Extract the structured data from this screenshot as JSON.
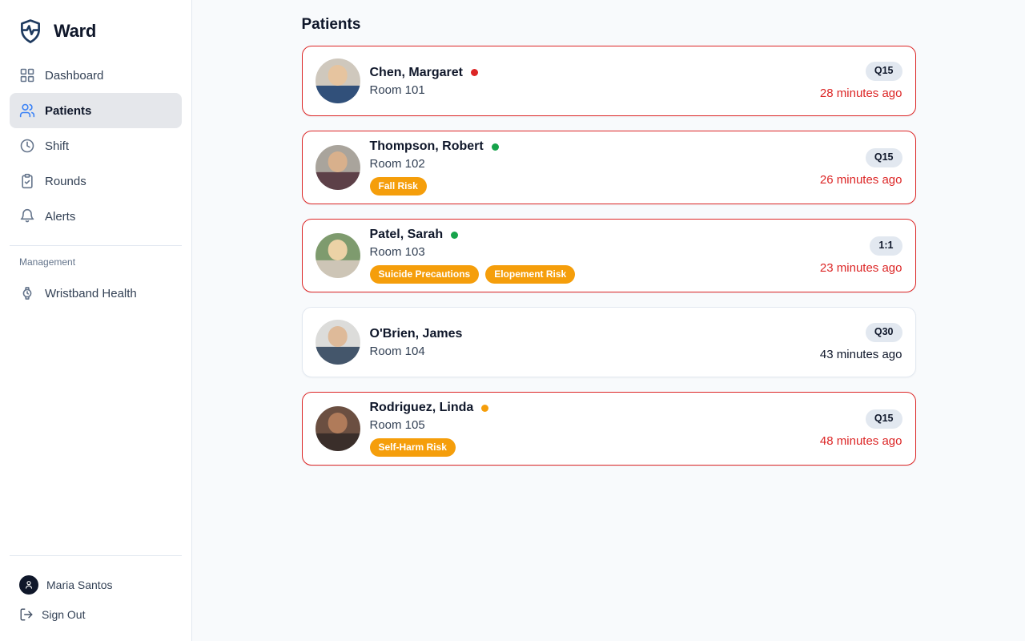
{
  "sidebar": {
    "brand": "Ward",
    "nav": [
      {
        "label": "Dashboard",
        "icon": "dashboard-icon",
        "active": false
      },
      {
        "label": "Patients",
        "icon": "users-icon",
        "active": true
      },
      {
        "label": "Shift",
        "icon": "clock-icon",
        "active": false
      },
      {
        "label": "Rounds",
        "icon": "clipboard-check-icon",
        "active": false
      },
      {
        "label": "Alerts",
        "icon": "bell-icon",
        "active": false
      }
    ],
    "management": {
      "section_label": "Management",
      "items": [
        {
          "label": "Wristband Health",
          "icon": "watch-icon"
        }
      ]
    },
    "footer": {
      "user_name": "Maria Santos",
      "sign_out_label": "Sign Out"
    }
  },
  "main": {
    "title": "Patients",
    "patients": [
      {
        "name": "Chen, Margaret",
        "room": "Room 101",
        "status_color": "#dc2626",
        "risks": [],
        "frequency": "Q15",
        "last_check": "28 minutes ago",
        "overdue": true,
        "avatar": {
          "bg": "#cfc8bd",
          "skin": "#e6c49f",
          "top": "#31507a"
        }
      },
      {
        "name": "Thompson, Robert",
        "room": "Room 102",
        "status_color": "#16a34a",
        "risks": [
          "Fall Risk"
        ],
        "frequency": "Q15",
        "last_check": "26 minutes ago",
        "overdue": true,
        "avatar": {
          "bg": "#a9a49c",
          "skin": "#d8b08c",
          "top": "#5d4048"
        }
      },
      {
        "name": "Patel, Sarah",
        "room": "Room 103",
        "status_color": "#16a34a",
        "risks": [
          "Suicide Precautions",
          "Elopement Risk"
        ],
        "frequency": "1:1",
        "last_check": "23 minutes ago",
        "overdue": true,
        "avatar": {
          "bg": "#7e9b6e",
          "skin": "#ecd2a6",
          "top": "#cdc5b6"
        }
      },
      {
        "name": "O'Brien, James",
        "room": "Room 104",
        "status_color": null,
        "risks": [],
        "frequency": "Q30",
        "last_check": "43 minutes ago",
        "overdue": false,
        "avatar": {
          "bg": "#dcdcda",
          "skin": "#deba99",
          "top": "#44566b"
        }
      },
      {
        "name": "Rodriguez, Linda",
        "room": "Room 105",
        "status_color": "#f59e0b",
        "risks": [
          "Self-Harm Risk"
        ],
        "frequency": "Q15",
        "last_check": "48 minutes ago",
        "overdue": true,
        "avatar": {
          "bg": "#6b4f41",
          "skin": "#b07b5a",
          "top": "#3a2e2a"
        }
      }
    ]
  },
  "colors": {
    "overdue_red": "#dc2626",
    "risk_badge_amber": "#f59e0b",
    "status_green": "#16a34a",
    "status_amber": "#f59e0b",
    "frequency_badge_bg": "#e2e8f0",
    "active_nav_icon_blue": "#3b82f6",
    "brand_navy": "#1e3a5f"
  }
}
